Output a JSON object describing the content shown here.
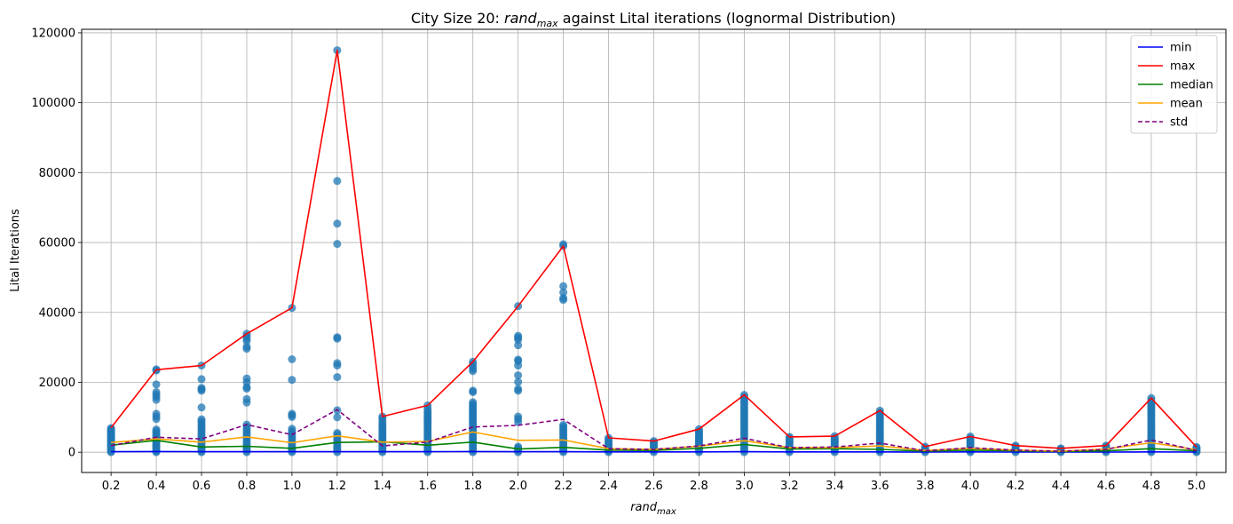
{
  "chart_data": {
    "type": "line",
    "title": {
      "prefix": "City Size 20: ",
      "var_base": "rand",
      "var_sub": "max",
      "suffix": " against Lital iterations (lognormal Distribution)"
    },
    "xlabel": {
      "base": "rand",
      "sub": "max"
    },
    "ylabel": "Lital Iterations",
    "x": [
      0.2,
      0.4,
      0.6,
      0.8,
      1.0,
      1.2,
      1.4,
      1.6,
      1.8,
      2.0,
      2.2,
      2.4,
      2.6,
      2.8,
      3.0,
      3.2,
      3.4,
      3.6,
      3.8,
      4.0,
      4.2,
      4.4,
      4.6,
      4.8,
      5.0
    ],
    "x_tick_labels": [
      "0.2",
      "0.4",
      "0.6",
      "0.8",
      "1.0",
      "1.2",
      "1.4",
      "1.6",
      "1.8",
      "2.0",
      "2.2",
      "2.4",
      "2.6",
      "2.8",
      "3.0",
      "3.2",
      "3.4",
      "3.6",
      "3.8",
      "4.0",
      "4.2",
      "4.4",
      "4.6",
      "4.8",
      "5.0"
    ],
    "y_ticks": [
      0,
      20000,
      40000,
      60000,
      80000,
      100000,
      120000
    ],
    "y_tick_labels": [
      "0",
      "20000",
      "40000",
      "60000",
      "80000",
      "100000",
      "120000"
    ],
    "xlim": [
      0.07,
      5.13
    ],
    "ylim": [
      -5800,
      121000
    ],
    "grid": true,
    "legend_position": "top-right",
    "series": [
      {
        "name": "min",
        "color": "#0000ff",
        "dash": false,
        "values": [
          150,
          200,
          150,
          150,
          150,
          150,
          150,
          150,
          200,
          150,
          150,
          100,
          100,
          100,
          150,
          100,
          100,
          100,
          50,
          100,
          50,
          50,
          50,
          100,
          50
        ]
      },
      {
        "name": "max",
        "color": "#ff0000",
        "dash": false,
        "values": [
          7000,
          23600,
          24800,
          33900,
          41300,
          115000,
          10200,
          13400,
          25900,
          41800,
          59000,
          4100,
          3200,
          6600,
          16400,
          4400,
          4600,
          11900,
          1600,
          4500,
          1900,
          1100,
          1900,
          15500,
          1500
        ]
      },
      {
        "name": "median",
        "color": "#008000",
        "dash": false,
        "values": [
          2000,
          3400,
          1500,
          1700,
          1100,
          2800,
          3000,
          2000,
          2900,
          900,
          1400,
          600,
          500,
          1100,
          2200,
          900,
          1000,
          800,
          300,
          600,
          400,
          200,
          400,
          1000,
          400
        ]
      },
      {
        "name": "mean",
        "color": "#ffa500",
        "dash": false,
        "values": [
          2800,
          3800,
          2900,
          4400,
          2700,
          4700,
          2900,
          3100,
          5800,
          3400,
          3500,
          1000,
          800,
          1700,
          3300,
          1300,
          1300,
          1800,
          500,
          1100,
          600,
          300,
          900,
          2700,
          700
        ]
      },
      {
        "name": "std",
        "color": "#800080",
        "dash": true,
        "values": [
          1900,
          4300,
          3800,
          7900,
          5000,
          12200,
          1800,
          2900,
          7200,
          7700,
          9400,
          1000,
          800,
          1800,
          4000,
          1300,
          1500,
          2600,
          400,
          1300,
          600,
          300,
          800,
          3500,
          500
        ]
      }
    ],
    "scatter": {
      "color": "#1f77b4",
      "points": [
        [
          0.2,
          [
            0,
            300,
            600,
            900,
            1200,
            1500,
            1800,
            2100,
            2400,
            2700,
            3000,
            3300,
            3600,
            3900,
            4200,
            4500,
            4800,
            5100,
            5400,
            5700,
            6000,
            6300,
            6600,
            6900
          ]
        ],
        [
          0.4,
          [
            0,
            300,
            600,
            1000,
            1400,
            1800,
            2200,
            2600,
            3000,
            3400,
            3800,
            4200,
            4600,
            5000,
            5500,
            6000,
            6500,
            9500,
            10200,
            11000,
            15000,
            15800,
            16500,
            17200,
            19400,
            23400,
            23700
          ]
        ],
        [
          0.6,
          [
            0,
            300,
            700,
            1100,
            1600,
            2200,
            2800,
            3400,
            4000,
            4600,
            5200,
            5800,
            6400,
            7000,
            7600,
            8200,
            8800,
            9400,
            12800,
            17600,
            18000,
            18400,
            20900,
            24800
          ]
        ],
        [
          0.8,
          [
            0,
            400,
            800,
            1300,
            1900,
            2500,
            3100,
            3700,
            4300,
            4900,
            5500,
            6100,
            6700,
            7300,
            7900,
            14200,
            15200,
            18200,
            18600,
            20000,
            21100,
            29600,
            30200,
            31800,
            32500,
            33200,
            33900
          ]
        ],
        [
          1.0,
          [
            0,
            400,
            800,
            1300,
            1900,
            2500,
            3100,
            3700,
            4300,
            4900,
            5500,
            6100,
            6700,
            10100,
            10600,
            11000,
            20700,
            26600,
            41300
          ]
        ],
        [
          1.2,
          [
            0,
            500,
            1000,
            1500,
            2000,
            2600,
            3200,
            3800,
            4400,
            5000,
            5500,
            10000,
            12000,
            21500,
            24800,
            25500,
            32500,
            32900,
            59600,
            65400,
            77600,
            115000
          ]
        ],
        [
          1.4,
          [
            0,
            400,
            800,
            1300,
            1800,
            2300,
            2800,
            3300,
            3800,
            4300,
            4800,
            5300,
            5800,
            6300,
            6800,
            7300,
            7800,
            8300,
            9000,
            9700,
            10200
          ]
        ],
        [
          1.6,
          [
            0,
            400,
            800,
            1300,
            1800,
            2300,
            2800,
            3300,
            3800,
            4300,
            4800,
            5300,
            5800,
            6300,
            6800,
            7300,
            7800,
            8300,
            8800,
            9300,
            9800,
            10300,
            10800,
            11300,
            11800,
            12500,
            13400
          ]
        ],
        [
          1.8,
          [
            0,
            400,
            800,
            1300,
            1800,
            2300,
            2800,
            3300,
            3800,
            4300,
            4800,
            5300,
            5800,
            6300,
            6800,
            7300,
            7800,
            8300,
            8800,
            9300,
            9800,
            10300,
            10800,
            11300,
            11800,
            12300,
            12800,
            13300,
            13800,
            14300,
            17200,
            17600,
            23200,
            23800,
            24500,
            25200,
            25900
          ]
        ],
        [
          2.0,
          [
            0,
            400,
            800,
            1200,
            1600,
            8600,
            9500,
            10200,
            17600,
            18100,
            20100,
            22000,
            24800,
            26100,
            26500,
            30600,
            32200,
            32800,
            33300,
            41800
          ]
        ],
        [
          2.2,
          [
            0,
            400,
            800,
            1300,
            1800,
            2300,
            2800,
            3300,
            3800,
            4300,
            4800,
            5300,
            5800,
            6300,
            6800,
            7300,
            7800,
            43600,
            44100,
            45700,
            47500,
            59000,
            59500
          ]
        ],
        [
          2.4,
          [
            0,
            400,
            800,
            1200,
            1600,
            2000,
            2400,
            2800,
            3200,
            3600,
            4100
          ]
        ],
        [
          2.6,
          [
            0,
            400,
            800,
            1200,
            1600,
            2000,
            2400,
            2800,
            3200
          ]
        ],
        [
          2.8,
          [
            0,
            400,
            800,
            1200,
            1600,
            2000,
            2400,
            2800,
            3200,
            3600,
            4000,
            4400,
            4800,
            5200,
            5600,
            6000,
            6600
          ]
        ],
        [
          3.0,
          [
            0,
            500,
            1000,
            1500,
            2000,
            2600,
            3200,
            3800,
            4400,
            5000,
            5600,
            6200,
            6800,
            7400,
            8000,
            8600,
            9200,
            9800,
            10400,
            11000,
            11600,
            12200,
            12800,
            13400,
            14000,
            14600,
            15200,
            15800,
            16400
          ]
        ],
        [
          3.2,
          [
            0,
            400,
            800,
            1200,
            1600,
            2000,
            2400,
            2800,
            3200,
            3600,
            4000,
            4400
          ]
        ],
        [
          3.4,
          [
            0,
            400,
            800,
            1200,
            1600,
            2000,
            2400,
            2800,
            3200,
            3600,
            4000,
            4600
          ]
        ],
        [
          3.6,
          [
            0,
            400,
            800,
            1200,
            1700,
            2200,
            2700,
            3200,
            3700,
            4200,
            4700,
            5200,
            5700,
            6200,
            6700,
            7200,
            7700,
            8200,
            8700,
            9200,
            9700,
            10200,
            10700,
            11300,
            11900
          ]
        ],
        [
          3.8,
          [
            0,
            400,
            800,
            1200,
            1600
          ]
        ],
        [
          4.0,
          [
            0,
            400,
            800,
            1200,
            1600,
            2000,
            2400,
            2800,
            3200,
            3600,
            4000,
            4500
          ]
        ],
        [
          4.2,
          [
            0,
            400,
            800,
            1200,
            1600,
            1900
          ]
        ],
        [
          4.4,
          [
            0,
            300,
            600,
            900,
            1100
          ]
        ],
        [
          4.6,
          [
            0,
            400,
            800,
            1200,
            1600,
            1900
          ]
        ],
        [
          4.8,
          [
            0,
            400,
            800,
            1200,
            1700,
            2200,
            2700,
            3200,
            3700,
            4200,
            4700,
            5200,
            5700,
            6200,
            6700,
            7200,
            7700,
            8200,
            8700,
            9200,
            9700,
            10200,
            10700,
            11200,
            11700,
            12200,
            12700,
            13200,
            13700,
            14200,
            14800,
            15500
          ]
        ],
        [
          5.0,
          [
            0,
            300,
            600,
            900,
            1200,
            1500
          ]
        ]
      ]
    }
  }
}
